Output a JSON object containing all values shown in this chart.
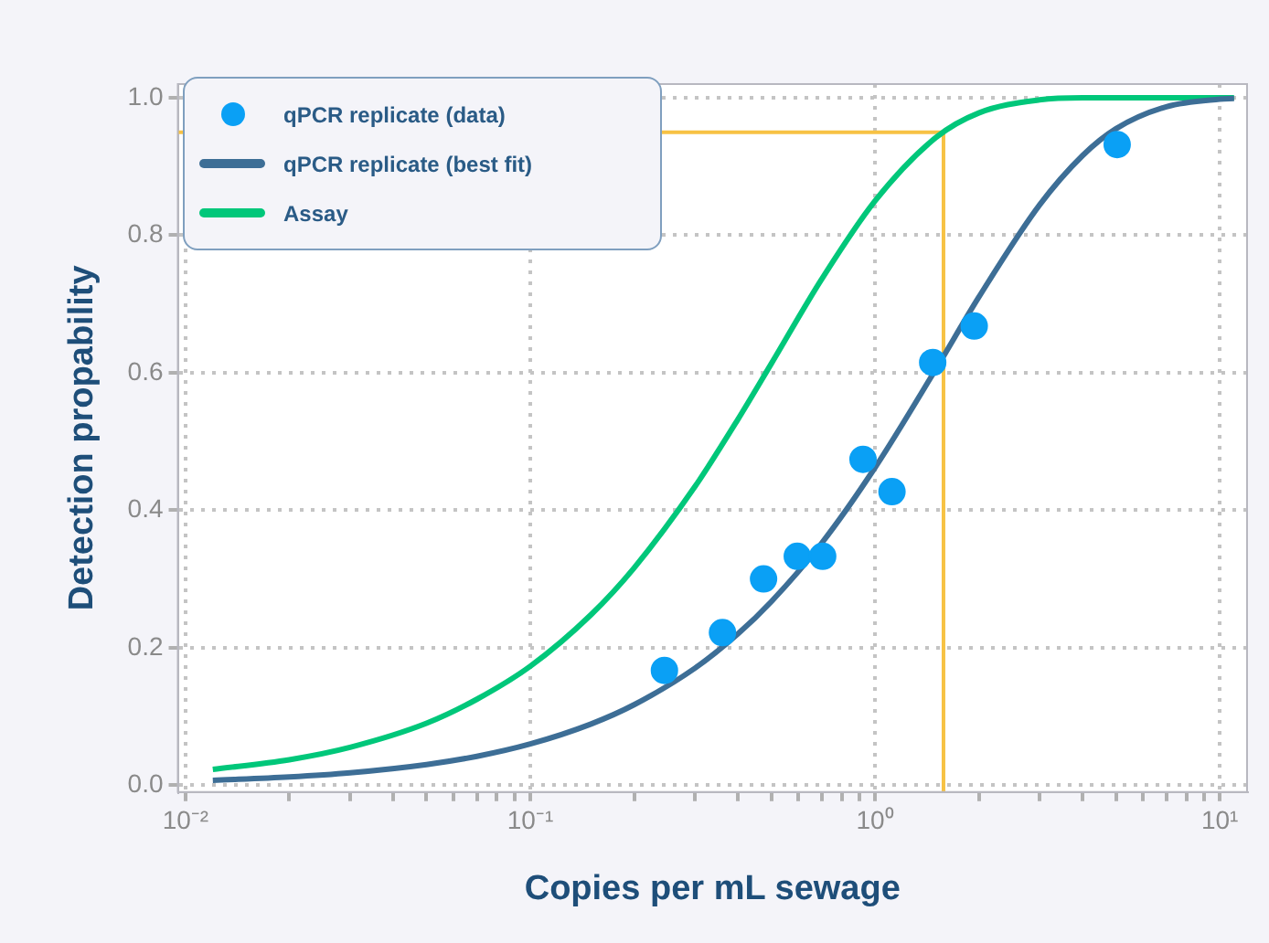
{
  "chart_data": {
    "type": "scatter",
    "xlabel": "Copies per mL sewage",
    "ylabel": "Detection propability",
    "log": "x",
    "xlim": [
      0.0095,
      12
    ],
    "ylim": [
      -0.01,
      1.02
    ],
    "xticks": [
      {
        "value": 0.01,
        "label": "10⁻²"
      },
      {
        "value": 0.02,
        "label": null
      },
      {
        "value": 0.03,
        "label": null
      },
      {
        "value": 0.04,
        "label": null
      },
      {
        "value": 0.05,
        "label": null
      },
      {
        "value": 0.06,
        "label": null
      },
      {
        "value": 0.07,
        "label": null
      },
      {
        "value": 0.08,
        "label": null
      },
      {
        "value": 0.09,
        "label": null
      },
      {
        "value": 0.1,
        "label": "10⁻¹"
      },
      {
        "value": 0.2,
        "label": null
      },
      {
        "value": 0.3,
        "label": null
      },
      {
        "value": 0.4,
        "label": null
      },
      {
        "value": 0.5,
        "label": null
      },
      {
        "value": 0.6,
        "label": null
      },
      {
        "value": 0.7,
        "label": null
      },
      {
        "value": 0.8,
        "label": null
      },
      {
        "value": 0.9,
        "label": null
      },
      {
        "value": 1,
        "label": "10⁰"
      },
      {
        "value": 2,
        "label": null
      },
      {
        "value": 3,
        "label": null
      },
      {
        "value": 4,
        "label": null
      },
      {
        "value": 5,
        "label": null
      },
      {
        "value": 6,
        "label": null
      },
      {
        "value": 7,
        "label": null
      },
      {
        "value": 8,
        "label": null
      },
      {
        "value": 9,
        "label": null
      },
      {
        "value": 10,
        "label": "10¹"
      }
    ],
    "yticks": [
      {
        "value": 0,
        "label": "0.0"
      },
      {
        "value": 0.2,
        "label": "0.2"
      },
      {
        "value": 0.4,
        "label": "0.4"
      },
      {
        "value": 0.6,
        "label": "0.6"
      },
      {
        "value": 0.8,
        "label": "0.8"
      },
      {
        "value": 1,
        "label": "1.0"
      }
    ],
    "grid": true,
    "legend": "top left",
    "series": [
      {
        "name": "qPCR replicate (data)",
        "marker": "circle",
        "color": "#0aa0f5",
        "x": [
          0.245,
          0.361,
          0.475,
          0.595,
          0.705,
          0.923,
          1.12,
          1.47,
          1.94,
          5.04
        ],
        "values": [
          0.167,
          0.222,
          0.3,
          0.333,
          0.333,
          0.474,
          0.427,
          0.615,
          0.668,
          0.932
        ]
      },
      {
        "name": "qPCR replicate (best fit)",
        "type": "line",
        "marker": "none",
        "color": "#3d6e96",
        "x": [
          0.012,
          0.02,
          0.03,
          0.05,
          0.07,
          0.1,
          0.15,
          0.2,
          0.3,
          0.4,
          0.5,
          0.7,
          1,
          1.5,
          2,
          3,
          4,
          5,
          7,
          10,
          11
        ],
        "values": [
          0.007,
          0.012,
          0.018,
          0.03,
          0.042,
          0.06,
          0.089,
          0.117,
          0.17,
          0.22,
          0.267,
          0.352,
          0.462,
          0.605,
          0.71,
          0.844,
          0.916,
          0.955,
          0.987,
          0.998,
          0.999
        ]
      },
      {
        "name": "Assay",
        "type": "line",
        "marker": "none",
        "color": "#00c77a",
        "x": [
          0.012,
          0.02,
          0.03,
          0.05,
          0.07,
          0.1,
          0.15,
          0.2,
          0.3,
          0.4,
          0.5,
          0.7,
          1,
          1.5,
          2,
          3,
          4,
          5,
          7,
          10,
          11
        ],
        "values": [
          0.023,
          0.037,
          0.055,
          0.09,
          0.125,
          0.173,
          0.248,
          0.316,
          0.434,
          0.532,
          0.613,
          0.736,
          0.85,
          0.942,
          0.978,
          0.997,
          1.0,
          1.0,
          1.0,
          1.0,
          1.0
        ]
      }
    ],
    "ref_lines": [
      {
        "axis": "y",
        "value": 0.95,
        "color": "#f7c244"
      },
      {
        "axis": "x",
        "value": 1.58,
        "color": "#f7c244"
      }
    ]
  }
}
